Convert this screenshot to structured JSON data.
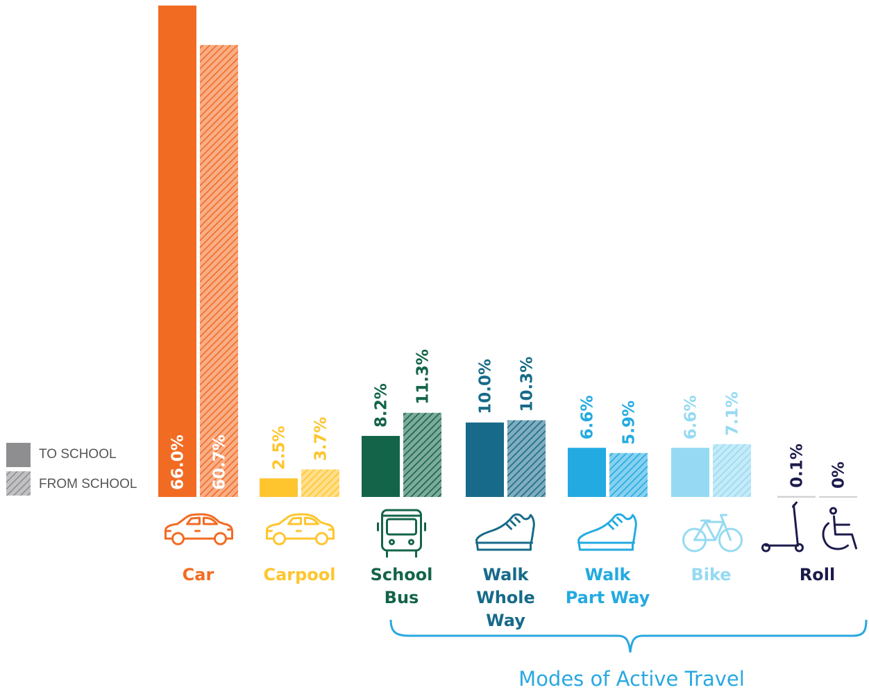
{
  "legend": {
    "to_school": "TO SCHOOL",
    "from_school": "FROM SCHOOL",
    "to_color": "#8e8e91",
    "from_color": "#8e8e91"
  },
  "bracket_label": "Modes of Active Travel",
  "chart_data": {
    "type": "bar",
    "ylim": [
      0,
      66
    ],
    "series": [
      {
        "name": "TO SCHOOL",
        "pattern": "solid",
        "values": [
          66.0,
          2.5,
          8.2,
          10.0,
          6.6,
          6.6,
          0.1
        ]
      },
      {
        "name": "FROM SCHOOL",
        "pattern": "hatched",
        "values": [
          60.7,
          3.7,
          11.3,
          10.3,
          5.9,
          7.1,
          0
        ]
      }
    ],
    "categories": [
      {
        "lines": [
          "Car"
        ],
        "color": "#f26b23",
        "icon": "car-icon",
        "value_labels": [
          "66.0%",
          "60.7%"
        ],
        "labels_inside": true
      },
      {
        "lines": [
          "Carpool"
        ],
        "color": "#fec52e",
        "icon": "car-icon",
        "value_labels": [
          "2.5%",
          "3.7%"
        ],
        "labels_inside": false
      },
      {
        "lines": [
          "School",
          "Bus"
        ],
        "color": "#136449",
        "icon": "bus-icon",
        "value_labels": [
          "8.2%",
          "11.3%"
        ],
        "labels_inside": false
      },
      {
        "lines": [
          "Walk",
          "Whole",
          "Way"
        ],
        "color": "#176a89",
        "icon": "sneaker-icon",
        "value_labels": [
          "10.0%",
          "10.3%"
        ],
        "labels_inside": false
      },
      {
        "lines": [
          "Walk",
          "Part Way"
        ],
        "color": "#23aae1",
        "icon": "sneaker-icon",
        "value_labels": [
          "6.6%",
          "5.9%"
        ],
        "labels_inside": false
      },
      {
        "lines": [
          "Bike"
        ],
        "color": "#95daf2",
        "icon": "bicycle-icon",
        "value_labels": [
          "6.6%",
          "7.1%"
        ],
        "labels_inside": false
      },
      {
        "lines": [
          "Roll"
        ],
        "color": "#1b1a4b",
        "icon": "scooter-wheelchair-icon",
        "value_labels": [
          "0.1%",
          "0%"
        ],
        "labels_inside": false
      }
    ]
  }
}
